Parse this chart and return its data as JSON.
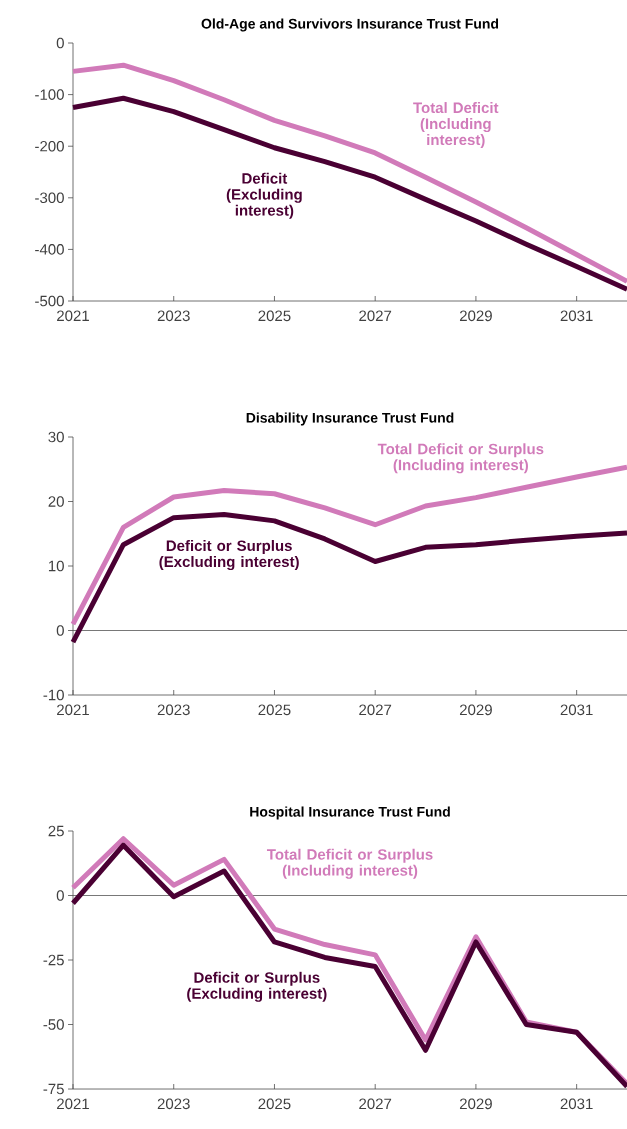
{
  "chart_data": [
    {
      "type": "line",
      "title": "Old-Age and Survivors Insurance Trust Fund",
      "x": [
        2021,
        2022,
        2023,
        2024,
        2025,
        2026,
        2027,
        2028,
        2029,
        2030,
        2031,
        2032
      ],
      "xlim": [
        2021,
        2032
      ],
      "xticks": [
        2021,
        2023,
        2025,
        2027,
        2029,
        2031
      ],
      "ylim": [
        -500,
        0
      ],
      "yticks": [
        -500,
        -400,
        -300,
        -200,
        -100,
        0
      ],
      "series": [
        {
          "name": "Total Deficit (Including interest)",
          "color": "#d17ab9",
          "values": [
            -55,
            -43,
            -73,
            -110,
            -150,
            -180,
            -213,
            -260,
            -308,
            -358,
            -410,
            -462
          ]
        },
        {
          "name": "Deficit (Excluding interest)",
          "color": "#4a0033",
          "values": [
            -125,
            -107,
            -133,
            -168,
            -203,
            -230,
            -260,
            -303,
            -345,
            -390,
            -433,
            -477
          ]
        }
      ]
    },
    {
      "type": "line",
      "title": "Disability Insurance Trust Fund",
      "x": [
        2021,
        2022,
        2023,
        2024,
        2025,
        2026,
        2027,
        2028,
        2029,
        2030,
        2031,
        2032
      ],
      "xlim": [
        2021,
        2032
      ],
      "xticks": [
        2021,
        2023,
        2025,
        2027,
        2029,
        2031
      ],
      "ylim": [
        -10,
        30
      ],
      "yticks": [
        -10,
        0,
        10,
        20,
        30
      ],
      "ref_lines": [
        {
          "axis": "y",
          "value": 0,
          "color": "#555555"
        }
      ],
      "series": [
        {
          "name": "Total Deficit or Surplus (Including interest)",
          "color": "#d17ab9",
          "values": [
            1,
            16,
            20.7,
            21.7,
            21.2,
            19,
            16.4,
            19.3,
            20.6,
            22.2,
            23.8,
            25.3
          ]
        },
        {
          "name": "Deficit or Surplus (Excluding interest)",
          "color": "#4a0033",
          "values": [
            -1.8,
            13.3,
            17.5,
            18,
            17,
            14.2,
            10.7,
            12.9,
            13.3,
            14,
            14.6,
            15.1
          ]
        }
      ]
    },
    {
      "type": "line",
      "title": "Hospital Insurance Trust Fund",
      "x": [
        2021,
        2022,
        2023,
        2024,
        2025,
        2026,
        2027,
        2028,
        2029,
        2030,
        2031,
        2032
      ],
      "xlim": [
        2021,
        2032
      ],
      "xticks": [
        2021,
        2023,
        2025,
        2027,
        2029,
        2031
      ],
      "ylim": [
        -75,
        25
      ],
      "yticks": [
        -75,
        -50,
        -25,
        0,
        25
      ],
      "ref_lines": [
        {
          "axis": "y",
          "value": 0,
          "color": "#555555"
        }
      ],
      "series": [
        {
          "name": "Total Deficit or Surplus (Including interest)",
          "color": "#d17ab9",
          "values": [
            3,
            22,
            4,
            14,
            -13,
            -19,
            -23,
            -56,
            -16,
            -49,
            -53,
            -73
          ]
        },
        {
          "name": "Deficit or Surplus (Excluding interest)",
          "color": "#4a0033",
          "values": [
            -3,
            19.5,
            -0.5,
            9.5,
            -18,
            -24,
            -27.5,
            -60,
            -18,
            -50,
            -53,
            -74
          ]
        }
      ]
    }
  ]
}
